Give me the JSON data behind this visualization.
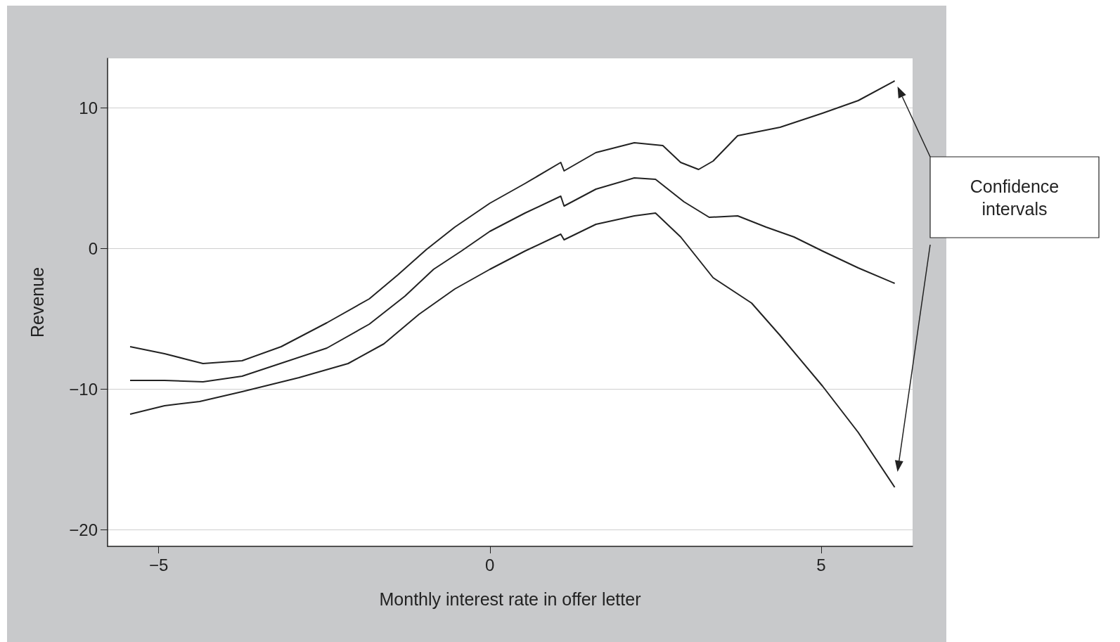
{
  "chart_data": {
    "type": "line",
    "xlabel": "Monthly interest rate in offer letter",
    "ylabel": "Revenue",
    "xlim": [
      -5.77,
      6.38
    ],
    "ylim": [
      -21.2,
      13.5
    ],
    "xticks": [
      {
        "value": -5,
        "label": "−5"
      },
      0,
      5
    ],
    "yticks": [
      {
        "value": -20,
        "label": "−20"
      },
      {
        "value": -10,
        "label": "−10"
      },
      0,
      10
    ],
    "grid": "y",
    "marker": "none",
    "annotations": [
      "Confidence intervals"
    ],
    "series": [
      {
        "color": "#222222",
        "x": [
          -5.43,
          -4.91,
          -4.33,
          -3.74,
          -3.15,
          -2.46,
          -1.82,
          -1.39,
          -0.96,
          -0.53,
          0,
          0.53,
          1.07,
          1.12,
          1.6,
          2.18,
          2.61,
          2.88,
          3.15,
          3.37,
          3.74,
          4.38,
          5.02,
          5.56,
          6.11
        ],
        "values": [
          -7.0,
          -7.5,
          -8.2,
          -8.0,
          -7.0,
          -5.3,
          -3.6,
          -1.9,
          -0.1,
          1.5,
          3.2,
          4.6,
          6.1,
          5.5,
          6.8,
          7.5,
          7.3,
          6.1,
          5.6,
          6.2,
          8.0,
          8.6,
          9.6,
          10.5,
          11.9
        ]
      },
      {
        "color": "#222222",
        "x": [
          -5.43,
          -4.91,
          -4.33,
          -3.74,
          -3.1,
          -2.46,
          -1.82,
          -1.28,
          -0.85,
          -0.43,
          0,
          0.53,
          1.07,
          1.12,
          1.6,
          2.18,
          2.5,
          2.93,
          3.31,
          3.74,
          4.17,
          4.59,
          5.02,
          5.56,
          6.11
        ],
        "values": [
          -9.4,
          -9.4,
          -9.5,
          -9.1,
          -8.1,
          -7.1,
          -5.4,
          -3.4,
          -1.5,
          -0.2,
          1.2,
          2.5,
          3.7,
          3.0,
          4.2,
          5.0,
          4.9,
          3.3,
          2.2,
          2.3,
          1.5,
          0.8,
          -0.2,
          -1.4,
          -2.5
        ]
      },
      {
        "color": "#222222",
        "x": [
          -5.43,
          -4.91,
          -4.38,
          -3.74,
          -2.88,
          -2.14,
          -1.6,
          -1.07,
          -0.53,
          0,
          0.53,
          1.07,
          1.12,
          1.6,
          2.18,
          2.5,
          2.88,
          3.37,
          3.95,
          4.38,
          5.02,
          5.56,
          6.11
        ],
        "values": [
          -11.8,
          -11.2,
          -10.9,
          -10.2,
          -9.2,
          -8.2,
          -6.8,
          -4.7,
          -2.9,
          -1.5,
          -0.2,
          1.0,
          0.6,
          1.7,
          2.3,
          2.5,
          0.8,
          -2.1,
          -3.9,
          -6.2,
          -9.8,
          -13.1,
          -17.0
        ]
      }
    ]
  }
}
